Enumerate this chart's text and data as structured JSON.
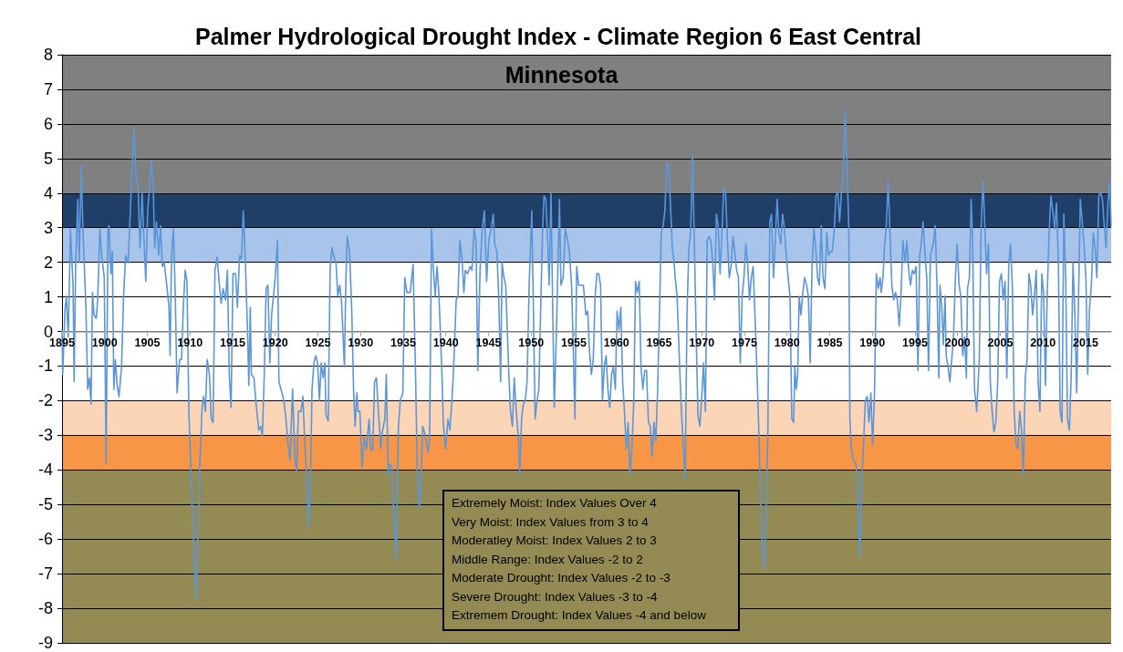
{
  "chart_data": {
    "type": "line",
    "title": "Palmer Hydrological Drought Index - Climate Region 6 East Central Minnesota",
    "xlim": [
      1895,
      2018
    ],
    "xticks": [
      1895,
      1900,
      1905,
      1910,
      1915,
      1920,
      1925,
      1930,
      1935,
      1940,
      1945,
      1950,
      1955,
      1960,
      1965,
      1970,
      1975,
      1980,
      1985,
      1990,
      1995,
      2000,
      2005,
      2010,
      2015
    ],
    "ylim": [
      -9,
      8
    ],
    "yticks": [
      -9,
      -8,
      -7,
      -6,
      -5,
      -4,
      -3,
      -2,
      -1,
      0,
      1,
      2,
      3,
      4,
      5,
      6,
      7,
      8
    ],
    "grid": "y",
    "marker": "none",
    "line_style": "solid",
    "bands": [
      {
        "axis": "y",
        "from": 4,
        "to": 8,
        "color": "#808080"
      },
      {
        "axis": "y",
        "from": 3,
        "to": 4,
        "color": "#1f3f68"
      },
      {
        "axis": "y",
        "from": 2,
        "to": 3,
        "color": "#a9c4eb"
      },
      {
        "axis": "y",
        "from": -3,
        "to": -2,
        "color": "#fbd5b5"
      },
      {
        "axis": "y",
        "from": -4,
        "to": -3,
        "color": "#f79646"
      },
      {
        "axis": "y",
        "from": -9,
        "to": -4,
        "color": "#948a54"
      }
    ],
    "annotations": [
      "Extremely Moist: Index Values Over 4",
      "Very Moist: Index Values from 3 to 4",
      "Moderatley Moist: Index Values 2 to 3",
      "Middle Range: Index Values -2 to 2",
      "Moderate Drought: Index Values -2 to -3",
      "Severe Drought: Index Values -3 to -4",
      "Extremem Drought: Index Values -4 and below"
    ],
    "series": [
      {
        "color": "#5b96d8",
        "x": [
          1895.0,
          1895.08,
          1895.34,
          1895.51,
          1895.73,
          1895.99,
          1896.29,
          1896.42,
          1896.59,
          1896.85,
          1897.02,
          1897.24,
          1897.45,
          1897.8,
          1898.01,
          1898.23,
          1898.4,
          1898.57,
          1898.75,
          1899.01,
          1899.18,
          1899.44,
          1899.65,
          1899.95,
          1900.17,
          1900.39,
          1900.51,
          1900.73,
          1900.9,
          1901.07,
          1901.25,
          1901.46,
          1901.68,
          1901.98,
          1902.2,
          1902.45,
          1902.76,
          1902.97,
          1903.23,
          1903.45,
          1903.66,
          1903.92,
          1904.14,
          1904.39,
          1904.61,
          1904.82,
          1905.04,
          1905.3,
          1905.47,
          1905.69,
          1905.86,
          1906.08,
          1906.33,
          1906.55,
          1906.76,
          1906.98,
          1907.28,
          1907.54,
          1907.67,
          1907.84,
          1908.06,
          1908.27,
          1908.49,
          1908.79,
          1909.01,
          1909.22,
          1909.44,
          1909.65,
          1909.87,
          1910.21,
          1910.51,
          1910.73,
          1910.94,
          1911.16,
          1911.42,
          1911.59,
          1911.81,
          1912.02,
          1912.28,
          1912.5,
          1912.71,
          1912.93,
          1913.19,
          1913.45,
          1913.66,
          1913.88,
          1914.18,
          1914.39,
          1914.61,
          1914.82,
          1915.04,
          1915.35,
          1915.56,
          1915.82,
          1916.04,
          1916.25,
          1916.47,
          1916.77,
          1916.9,
          1917.07,
          1917.2,
          1917.5,
          1917.76,
          1918.06,
          1918.28,
          1918.49,
          1918.71,
          1918.93,
          1919.14,
          1919.36,
          1919.57,
          1919.79,
          1920.0,
          1920.26,
          1920.43,
          1920.78,
          1920.99,
          1921.21,
          1921.51,
          1921.73,
          1922.03,
          1922.29,
          1922.5,
          1922.72,
          1923.02,
          1923.24,
          1923.45,
          1923.71,
          1923.93,
          1924.14,
          1924.31,
          1924.53,
          1924.74,
          1924.96,
          1925.18,
          1925.39,
          1925.61,
          1925.82,
          1925.95,
          1926.21,
          1926.43,
          1926.64,
          1926.9,
          1927.12,
          1927.33,
          1927.55,
          1927.76,
          1928.11,
          1928.28,
          1928.45,
          1928.71,
          1928.97,
          1929.18,
          1929.36,
          1929.57,
          1929.7,
          1929.92,
          1930.18,
          1930.43,
          1930.69,
          1931.0,
          1931.21,
          1931.43,
          1931.64,
          1931.86,
          1932.07,
          1932.37,
          1932.5,
          1932.85,
          1933.02,
          1933.24,
          1933.45,
          1933.67,
          1933.88,
          1934.18,
          1934.44,
          1934.66,
          1934.96,
          1935.18,
          1935.43,
          1935.82,
          1936.16,
          1936.42,
          1936.68,
          1936.9,
          1937.11,
          1937.28,
          1937.54,
          1937.89,
          1938.1,
          1938.32,
          1938.53,
          1938.75,
          1938.97,
          1939.18,
          1939.53,
          1939.7,
          1939.96,
          1940.26,
          1940.47,
          1940.69,
          1940.9,
          1941.21,
          1941.42,
          1941.64,
          1941.89,
          1942.11,
          1942.28,
          1942.54,
          1942.84,
          1943.06,
          1943.31,
          1943.53,
          1943.75,
          1944.01,
          1944.26,
          1944.52,
          1944.78,
          1945.04,
          1945.3,
          1945.56,
          1945.73,
          1945.99,
          1946.21,
          1946.42,
          1946.59,
          1946.81,
          1947.02,
          1947.37,
          1947.58,
          1947.8,
          1948.02,
          1948.23,
          1948.53,
          1948.66,
          1948.88,
          1949.09,
          1949.31,
          1949.52,
          1949.78,
          1950.08,
          1950.26,
          1950.47,
          1950.64,
          1950.9,
          1951.08,
          1951.33,
          1951.51,
          1951.72,
          1951.94,
          1952.11,
          1952.33,
          1952.54,
          1952.71,
          1952.97,
          1953.32,
          1953.49,
          1953.75,
          1954.01,
          1954.27,
          1954.48,
          1954.74,
          1954.95,
          1955.13,
          1955.34,
          1955.56,
          1955.86,
          1956.12,
          1956.42,
          1956.63,
          1956.85,
          1957.06,
          1957.28,
          1957.5,
          1957.71,
          1957.93,
          1958.14,
          1958.36,
          1958.57,
          1958.79,
          1959.0,
          1959.22,
          1959.43,
          1959.65,
          1959.87,
          1960.08,
          1960.3,
          1960.51,
          1960.73,
          1960.94,
          1961.16,
          1961.37,
          1961.59,
          1961.81,
          1962.02,
          1962.24,
          1962.45,
          1962.67,
          1962.88,
          1963.1,
          1963.31,
          1963.53,
          1963.75,
          1963.96,
          1964.18,
          1964.39,
          1964.61,
          1964.82,
          1965.04,
          1965.25,
          1965.47,
          1965.68,
          1965.9,
          1966.12,
          1966.33,
          1966.55,
          1966.76,
          1966.89,
          1967.11,
          1967.41,
          1967.62,
          1967.84,
          1968.06,
          1968.27,
          1968.49,
          1968.7,
          1968.92,
          1969.13,
          1969.35,
          1969.56,
          1969.78,
          1970.0,
          1970.21,
          1970.43,
          1970.64,
          1970.86,
          1971.07,
          1971.29,
          1971.5,
          1971.72,
          1971.93,
          1972.15,
          1972.37,
          1972.58,
          1972.8,
          1973.01,
          1973.23,
          1973.44,
          1973.66,
          1973.87,
          1974.09,
          1974.3,
          1974.52,
          1974.74,
          1974.95,
          1975.17,
          1975.38,
          1975.6,
          1975.81,
          1976.03,
          1976.24,
          1976.47,
          1976.68,
          1976.9,
          1977.11,
          1977.33,
          1977.54,
          1977.76,
          1977.98,
          1978.19,
          1978.41,
          1978.62,
          1978.84,
          1979.05,
          1979.27,
          1979.48,
          1979.7,
          1979.91,
          1980.13,
          1980.35,
          1980.56,
          1980.78,
          1980.91,
          1981.08,
          1981.25,
          1981.42,
          1981.64,
          1981.85,
          1982.07,
          1982.29,
          1982.5,
          1982.72,
          1982.93,
          1983.15,
          1983.36,
          1983.58,
          1983.79,
          1984.01,
          1984.22,
          1984.44,
          1984.66,
          1984.87,
          1985.09,
          1985.3,
          1985.52,
          1985.73,
          1985.95,
          1986.16,
          1986.38,
          1986.6,
          1986.81,
          1987.03,
          1987.24,
          1987.37,
          1987.54,
          1987.76,
          1988.1,
          1988.32,
          1988.53,
          1988.75,
          1988.97,
          1989.18,
          1989.4,
          1989.61,
          1989.83,
          1990.04,
          1990.26,
          1990.47,
          1990.69,
          1990.91,
          1991.04,
          1991.25,
          1991.42,
          1991.64,
          1991.86,
          1992.07,
          1992.29,
          1992.5,
          1992.72,
          1992.93,
          1993.15,
          1993.36,
          1993.58,
          1993.84,
          1994.05,
          1994.27,
          1994.48,
          1994.7,
          1994.91,
          1995.13,
          1995.35,
          1995.56,
          1995.73,
          1995.95,
          1996.16,
          1996.38,
          1996.59,
          1996.81,
          1997.15,
          1997.37,
          1997.58,
          1997.8,
          1997.93,
          1998.14,
          1998.32,
          1998.53,
          1998.66,
          1998.88,
          1999.09,
          1999.31,
          1999.52,
          1999.74,
          1999.95,
          2000.17,
          2000.38,
          2000.6,
          2000.82,
          2001.03,
          2001.16,
          2001.38,
          2001.59,
          2001.76,
          2001.98,
          2002.24,
          2002.54,
          2002.76,
          2002.97,
          2003.19,
          2003.4,
          2003.62,
          2003.83,
          2004.05,
          2004.26,
          2004.48,
          2004.7,
          2004.91,
          2005.13,
          2005.34,
          2005.56,
          2005.77,
          2005.99,
          2006.2,
          2006.42,
          2006.63,
          2006.85,
          2007.07,
          2007.28,
          2007.5,
          2007.71,
          2007.93,
          2008.14,
          2008.36,
          2008.57,
          2008.79,
          2009.0,
          2009.22,
          2009.44,
          2009.65,
          2009.87,
          2010.08,
          2010.3,
          2010.51,
          2010.73,
          2010.94,
          2011.16,
          2011.38,
          2011.59,
          2011.81,
          2012.02,
          2012.24,
          2012.45,
          2012.67,
          2012.88,
          2013.1,
          2013.31,
          2013.53,
          2013.75,
          2013.96,
          2014.18,
          2014.39,
          2014.61,
          2014.82,
          2015.04,
          2015.25,
          2015.47,
          2015.68,
          2015.9,
          2016.12,
          2016.33,
          2016.55,
          2016.76,
          2016.98,
          2017.19,
          2017.41,
          2017.62,
          2017.84,
          2018.0
        ],
        "values": [
          0.05,
          -1.24,
          0.59,
          1.02,
          -0.16,
          2.96,
          1.34,
          -1.45,
          1.88,
          3.82,
          1.99,
          4.78,
          2.96,
          0.7,
          -1.67,
          -1.34,
          -2.1,
          1.13,
          0.48,
          0.38,
          0.91,
          2.96,
          2.2,
          1.56,
          -3.82,
          2.96,
          3.06,
          1.67,
          2.31,
          -1.67,
          -0.81,
          -1.56,
          -1.88,
          -1.02,
          0.91,
          2.2,
          1.99,
          3.28,
          4.78,
          5.86,
          4.46,
          4.14,
          2.42,
          4.03,
          2.63,
          1.45,
          3.49,
          4.25,
          4.95,
          4.25,
          2.42,
          3.17,
          2.2,
          3.06,
          1.88,
          1.99,
          1.34,
          0.7,
          -0.7,
          2.2,
          2.96,
          1.13,
          -1.77,
          -0.81,
          -0.81,
          0.7,
          1.77,
          1.45,
          -2.31,
          -4.78,
          -6.61,
          -7.74,
          -5.97,
          -3.82,
          -2.2,
          -1.88,
          -2.31,
          -0.81,
          -1.24,
          -2.53,
          -2.63,
          1.77,
          2.15,
          1.34,
          0.81,
          1.24,
          0.91,
          1.77,
          -1.24,
          -2.2,
          1.67,
          1.67,
          0.7,
          2.2,
          2.1,
          3.49,
          2.2,
          -0.16,
          -1.56,
          0.7,
          -1.24,
          -1.34,
          -2.1,
          -2.85,
          -2.74,
          -3.01,
          -1.24,
          1.24,
          1.34,
          -0.91,
          0.48,
          1.02,
          1.56,
          2.63,
          -1.45,
          -1.77,
          -1.99,
          -2.42,
          -3.28,
          -3.71,
          -1.67,
          -3.6,
          -4.03,
          -2.31,
          -2.31,
          -1.88,
          -3.17,
          -4.35,
          -5.65,
          -4.25,
          -1.67,
          -0.91,
          -0.7,
          -0.91,
          -1.99,
          -0.91,
          -1.34,
          -0.91,
          -2.42,
          -2.58,
          1.77,
          2.42,
          2.15,
          1.99,
          1.02,
          1.34,
          0.91,
          -1.02,
          1.56,
          2.74,
          2.31,
          0.59,
          -1.67,
          -2.74,
          -1.77,
          -2.31,
          -2.31,
          -3.92,
          -3.06,
          -3.39,
          -2.53,
          -3.44,
          -3.39,
          -1.45,
          -1.34,
          -2.2,
          -3.39,
          -2.96,
          -2.53,
          -1.24,
          -4.14,
          -3.82,
          -3.92,
          -5.22,
          -6.61,
          -2.74,
          -1.99,
          -1.77,
          1.56,
          1.13,
          1.13,
          1.94,
          -0.91,
          -4.35,
          -5.11,
          -4.14,
          -2.74,
          -2.96,
          -3.49,
          -3.06,
          2.96,
          1.88,
          1.02,
          1.88,
          1.13,
          -1.13,
          -2.63,
          -3.39,
          -2.53,
          -2.85,
          -2.1,
          -1.13,
          0.91,
          1.02,
          2.63,
          2.1,
          1.13,
          1.77,
          1.67,
          1.88,
          1.77,
          2.96,
          2.63,
          -1.13,
          1.77,
          2.96,
          3.49,
          1.45,
          2.63,
          2.96,
          3.39,
          2.53,
          2.31,
          0.91,
          -1.45,
          1.99,
          1.56,
          1.34,
          -1.13,
          -2.31,
          -2.74,
          -1.34,
          -2.2,
          -3.17,
          -4.14,
          -2.53,
          -2.1,
          -1.99,
          -1.45,
          1.45,
          3.49,
          0.7,
          -2.53,
          -2.1,
          -1.67,
          0.27,
          2.85,
          3.92,
          3.82,
          2.63,
          1.34,
          4.03,
          0.48,
          -2.2,
          0.05,
          3.82,
          1.34,
          1.56,
          2.96,
          2.63,
          2.31,
          1.34,
          -0.59,
          -2.53,
          1.88,
          1.34,
          1.34,
          1.34,
          0.48,
          0.59,
          -0.59,
          -1.24,
          -0.81,
          1.02,
          1.67,
          1.67,
          1.34,
          -1.99,
          -1.02,
          -0.7,
          -1.67,
          -2.2,
          -1.24,
          -1.02,
          -1.67,
          0.59,
          0.05,
          0.7,
          -1.45,
          -2.31,
          -3.39,
          -2.63,
          -4.14,
          -3.39,
          -2.1,
          1.45,
          1.13,
          1.45,
          -1.02,
          -1.67,
          -1.13,
          -1.13,
          -2.63,
          -2.74,
          -3.6,
          -2.63,
          -3.17,
          -1.77,
          0.48,
          2.85,
          3.06,
          3.49,
          4.89,
          4.78,
          3.71,
          2.42,
          1.99,
          1.56,
          1.02,
          -1.02,
          -2.31,
          -3.28,
          -4.25,
          0.48,
          2.42,
          2.85,
          5.11,
          2.63,
          -0.16,
          -2.42,
          -2.74,
          -1.88,
          -0.91,
          -2.31,
          2.63,
          2.74,
          2.63,
          1.99,
          0.91,
          3.39,
          3.06,
          1.67,
          2.85,
          4.14,
          4.03,
          2.63,
          1.56,
          1.88,
          2.74,
          2.31,
          1.77,
          1.56,
          -0.91,
          1.02,
          1.56,
          2.53,
          1.99,
          0.91,
          1.56,
          1.88,
          0.48,
          -1.13,
          -2.74,
          -4.89,
          -6.29,
          -6.83,
          -5.43,
          -2.74,
          3.17,
          3.39,
          1.56,
          2.63,
          3.82,
          2.85,
          2.53,
          3.39,
          2.96,
          2.2,
          1.56,
          1.02,
          -2.53,
          -2.63,
          -1.02,
          -1.67,
          -1.24,
          1.02,
          0.48,
          1.13,
          1.56,
          1.34,
          1.02,
          -0.91,
          1.88,
          2.96,
          2.42,
          1.56,
          1.34,
          3.06,
          1.56,
          1.24,
          2.85,
          2.2,
          2.31,
          2.31,
          2.85,
          3.92,
          4.03,
          3.17,
          4.03,
          4.57,
          6.4,
          4.78,
          3.06,
          -2.53,
          -3.39,
          -3.71,
          -3.82,
          -4.89,
          -6.51,
          -4.35,
          -3.28,
          -1.99,
          -1.88,
          -2.63,
          -1.77,
          -3.28,
          -1.77,
          1.67,
          1.24,
          1.56,
          1.13,
          1.56,
          2.42,
          3.06,
          4.35,
          2.85,
          1.34,
          0.91,
          1.13,
          0.91,
          0.16,
          1.02,
          2.63,
          1.99,
          2.63,
          1.77,
          1.34,
          1.77,
          1.67,
          1.88,
          -1.13,
          2.2,
          2.53,
          3.17,
          2.31,
          1.56,
          -1.13,
          2.2,
          2.53,
          3.06,
          1.34,
          -1.34,
          1.34,
          0.7,
          -0.38,
          1.02,
          -0.7,
          -1.02,
          -1.45,
          -0.81,
          -0.16,
          1.56,
          2.53,
          1.34,
          1.02,
          -0.7,
          -0.16,
          -1.34,
          1.24,
          1.56,
          3.82,
          2.63,
          -1.67,
          -2.31,
          -0.81,
          3.06,
          4.35,
          3.06,
          1.67,
          2.53,
          -1.45,
          -2.31,
          -2.9,
          -2.63,
          -1.45,
          1.45,
          1.67,
          0.91,
          1.45,
          -1.34,
          1.88,
          2.53,
          1.34,
          -2.31,
          -3.28,
          -3.39,
          -2.31,
          -2.85,
          -4.14,
          -1.34,
          -0.81,
          1.67,
          1.34,
          0.48,
          1.02,
          1.77,
          -1.45,
          -2.31,
          1.67,
          1.13,
          -1.56,
          1.13,
          2.85,
          3.92,
          3.49,
          2.96,
          3.71,
          2.1,
          -2.31,
          -2.63,
          3.39,
          1.56,
          -2.53,
          -2.85,
          -1.34,
          1.99,
          0.48,
          -1.77,
          1.02,
          3.82,
          3.17,
          2.53,
          1.56,
          -1.24,
          0.7,
          1.34,
          2.85,
          2.42,
          1.56,
          3.92,
          4.03,
          3.82,
          3.06,
          2.42,
          3.71,
          4.35,
          3.06
        ]
      }
    ]
  }
}
